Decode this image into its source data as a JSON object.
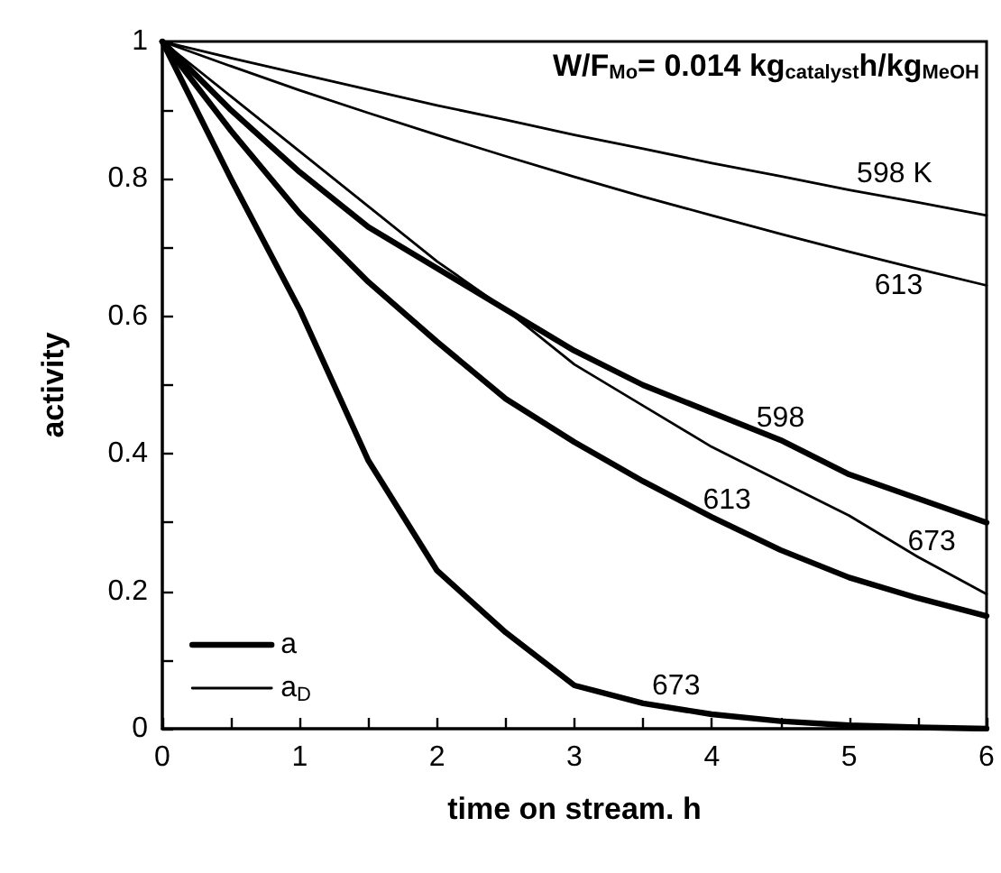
{
  "chart_data": {
    "type": "line",
    "xlabel": "time on stream. h",
    "ylabel": "activity",
    "xlim": [
      0,
      6
    ],
    "ylim": [
      0,
      1
    ],
    "xticks": [
      0,
      {
        "value": 0.5,
        "label": null
      },
      1,
      {
        "value": 1.5,
        "label": null
      },
      2,
      {
        "value": 2.5,
        "label": null
      },
      3,
      {
        "value": 3.5,
        "label": null
      },
      4,
      {
        "value": 4.5,
        "label": null
      },
      5,
      {
        "value": 5.5,
        "label": null
      },
      6
    ],
    "yticks": [
      0,
      {
        "value": 0.1,
        "label": null
      },
      {
        "value": 0.2,
        "label": "0.2"
      },
      {
        "value": 0.3,
        "label": null
      },
      {
        "value": 0.4,
        "label": "0.4"
      },
      {
        "value": 0.5,
        "label": null
      },
      {
        "value": 0.6,
        "label": "0.6"
      },
      {
        "value": 0.7,
        "label": null
      },
      {
        "value": 0.8,
        "label": "0.8"
      },
      {
        "value": 0.9,
        "label": null
      },
      1
    ],
    "x": [
      0,
      0.5,
      1,
      1.5,
      2,
      2.5,
      3,
      3.5,
      4,
      4.5,
      5,
      5.5,
      6
    ],
    "series": [
      {
        "name": "a",
        "color": "#000000",
        "values": [
          1,
          0.9,
          0.81,
          0.73,
          0.67,
          0.61,
          0.55,
          0.5,
          0.46,
          0.42,
          0.37,
          0.335,
          0.3
        ]
      },
      {
        "color": "#000000",
        "values": [
          1,
          0.87,
          0.75,
          0.65,
          0.563,
          0.48,
          0.417,
          0.36,
          0.308,
          0.26,
          0.22,
          0.19,
          0.164
        ]
      },
      {
        "color": "#000000",
        "values": [
          1,
          0.8,
          0.61,
          0.39,
          0.23,
          0.14,
          0.063,
          0.037,
          0.021,
          0.011,
          0.005,
          0.002,
          0
        ]
      },
      {
        "name": "a$_{D}$",
        "color": "#000000",
        "values": [
          1,
          0.976,
          0.953,
          0.93,
          0.907,
          0.886,
          0.864,
          0.844,
          0.823,
          0.804,
          0.784,
          0.766,
          0.747
        ]
      },
      {
        "color": "#000000",
        "values": [
          1,
          0.964,
          0.929,
          0.896,
          0.864,
          0.833,
          0.803,
          0.774,
          0.747,
          0.72,
          0.694,
          0.669,
          0.645
        ]
      },
      {
        "color": "#000000",
        "values": [
          1,
          0.92,
          0.84,
          0.76,
          0.68,
          0.61,
          0.53,
          0.47,
          0.41,
          0.36,
          0.31,
          0.25,
          0.196
        ]
      }
    ],
    "annotations": [
      "W/F$_{Mo}$= 0.014 kg$_{catalyst}$h/kg$_{MeOH}$",
      {
        "text": "598 K",
        "x": 5.33,
        "y": 0.776
      },
      {
        "text": "613",
        "x": 5.36,
        "y": 0.676
      },
      {
        "text": "598",
        "x": 4.5,
        "y": 0.42
      },
      {
        "text": "613",
        "x": 4.11,
        "y": 0.3
      },
      {
        "text": "673",
        "x": 5.6,
        "y": 0.24
      },
      {
        "text": "673",
        "x": 3.74,
        "y": 0.03
      }
    ],
    "legend": "bottom left",
    "grid": false,
    "marker": "none",
    "line_style": "solid"
  }
}
